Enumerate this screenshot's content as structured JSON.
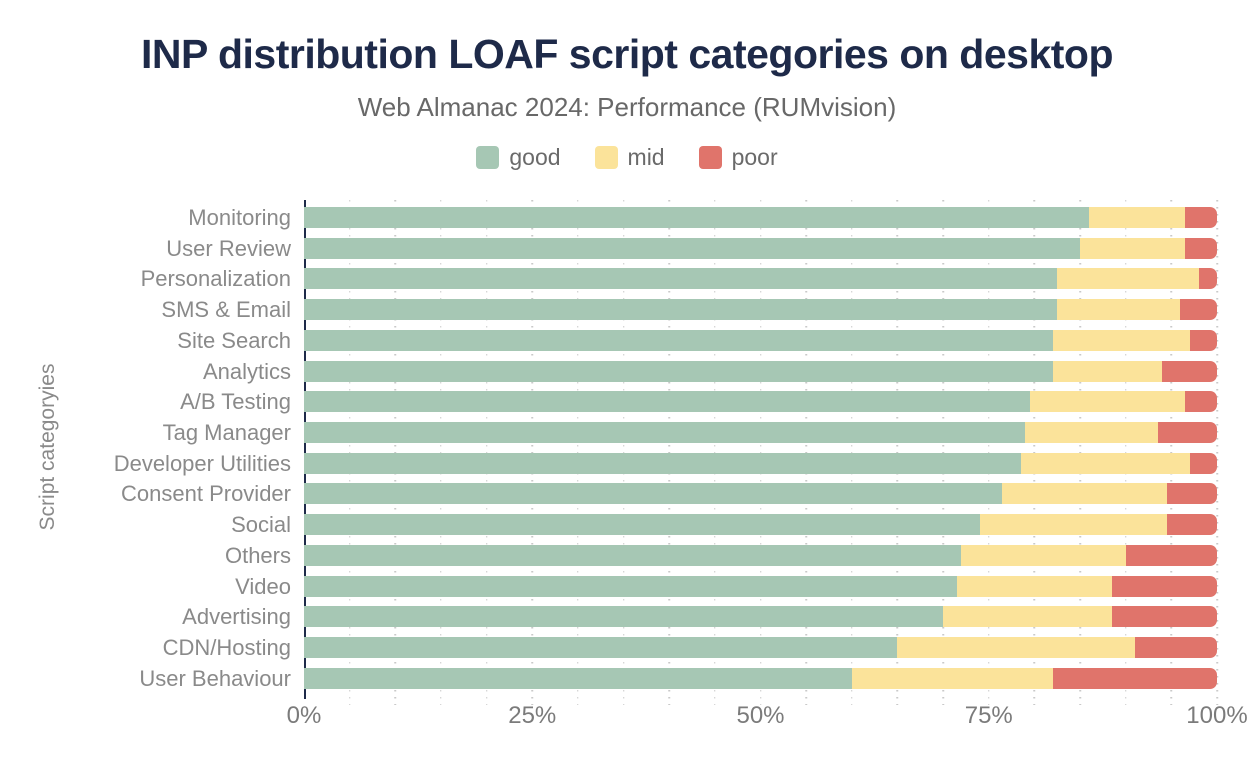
{
  "title": "INP distribution LOAF script categories on desktop",
  "subtitle": "Web Almanac 2024: Performance (RUMvision)",
  "chart_data": {
    "type": "bar",
    "stacked": true,
    "orientation": "horizontal",
    "title": "INP distribution LOAF script categories on desktop",
    "subtitle": "Web Almanac 2024: Performance (RUMvision)",
    "xlabel": "",
    "ylabel": "Script categoryies",
    "xlim": [
      0,
      100
    ],
    "x_tick_labels": [
      "0%",
      "25%",
      "50%",
      "75%",
      "100%"
    ],
    "grid": "vertical dotted lines every 5%",
    "legend_position": "top center",
    "categories": [
      "Monitoring",
      "User Review",
      "Personalization",
      "SMS & Email",
      "Site Search",
      "Analytics",
      "A/B Testing",
      "Tag Manager",
      "Developer Utilities",
      "Consent Provider",
      "Social",
      "Others",
      "Video",
      "Advertising",
      "CDN/Hosting",
      "User Behaviour"
    ],
    "series": [
      {
        "name": "good",
        "color": "#a6c7b4",
        "values": [
          86,
          85,
          82.5,
          82.5,
          82,
          82,
          79.5,
          79,
          78.5,
          76.5,
          74,
          72,
          71.5,
          70,
          65,
          60
        ]
      },
      {
        "name": "mid",
        "color": "#fbe39a",
        "values": [
          10.5,
          11.5,
          15.5,
          13.5,
          15,
          12,
          17,
          14.5,
          18.5,
          18,
          20.5,
          18,
          17,
          18.5,
          26,
          22
        ]
      },
      {
        "name": "poor",
        "color": "#e0746b",
        "values": [
          3.5,
          3.5,
          2,
          4,
          3,
          6,
          3.5,
          6.5,
          3,
          5.5,
          5.5,
          10,
          11.5,
          11.5,
          9,
          18
        ]
      }
    ],
    "style": {
      "title_color": "#1e2a49",
      "subtitle_color": "#686868",
      "label_color": "#8a8a8a",
      "tick_color": "#7b7b7b",
      "axis_color": "#1e2a49",
      "grid_color": "#c9c9c9",
      "background": "#ffffff"
    }
  }
}
